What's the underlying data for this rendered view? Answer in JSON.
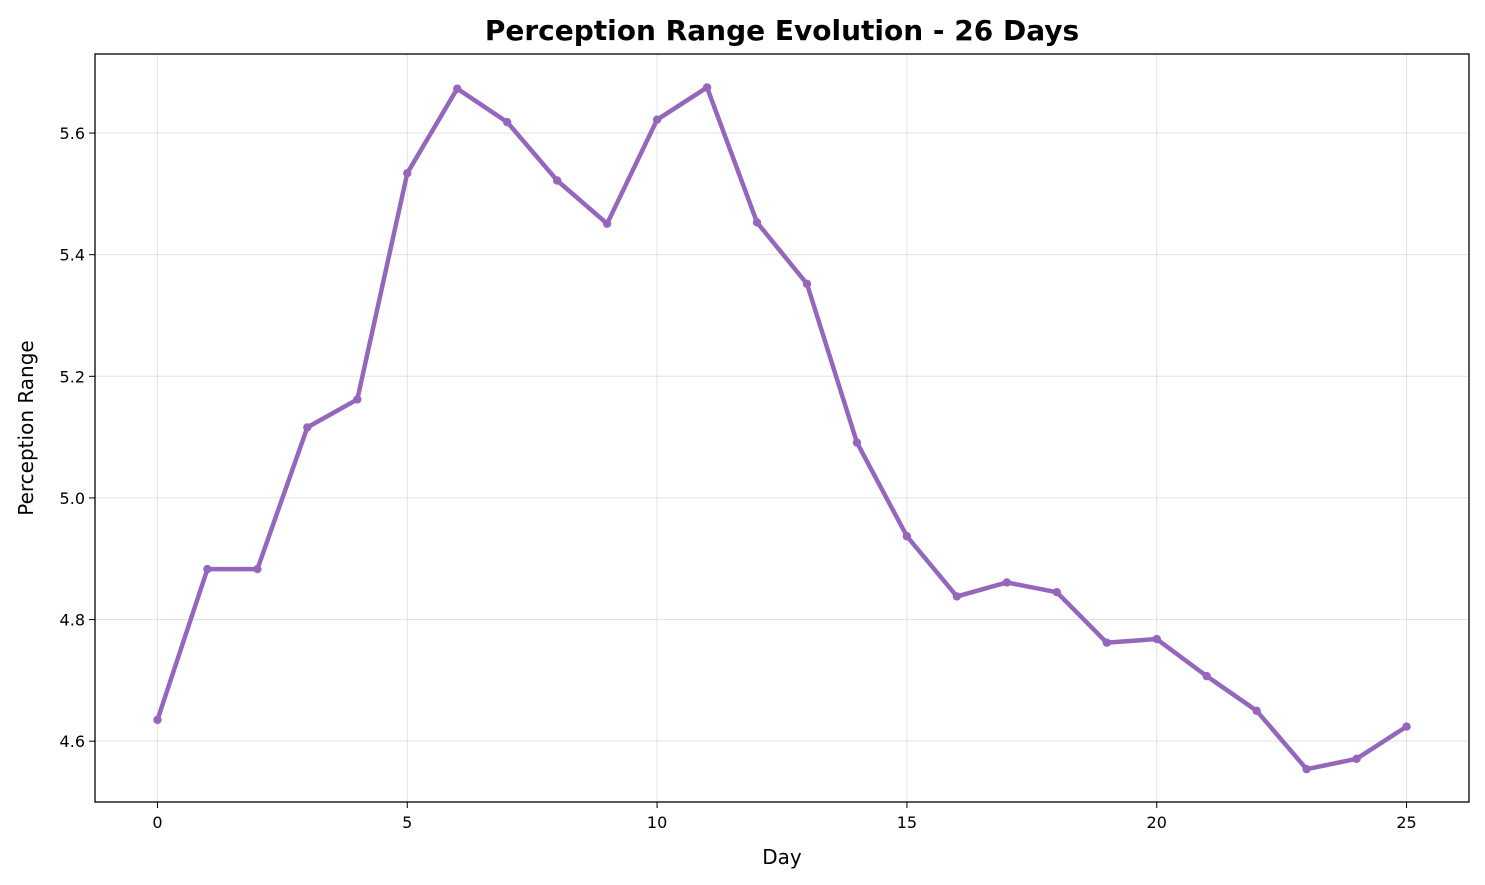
{
  "chart_data": {
    "type": "line",
    "title": "Perception Range Evolution - 26 Days",
    "xlabel": "Day",
    "ylabel": "Perception Range",
    "xlim": [
      -1.25,
      26.25
    ],
    "ylim": [
      4.5,
      5.73
    ],
    "xticks": [
      0,
      5,
      10,
      15,
      20,
      25
    ],
    "yticks": [
      4.6,
      4.8,
      5.0,
      5.2,
      5.4,
      5.6
    ],
    "grid": true,
    "series": [
      {
        "color": "#9467bd",
        "x": [
          0,
          1,
          2,
          3,
          4,
          5,
          6,
          7,
          8,
          9,
          10,
          11,
          12,
          13,
          14,
          15,
          16,
          17,
          18,
          19,
          20,
          21,
          22,
          23,
          24,
          25
        ],
        "values": [
          4.635,
          4.883,
          4.883,
          5.116,
          5.162,
          5.534,
          5.673,
          5.618,
          5.522,
          5.451,
          5.622,
          5.675,
          5.453,
          5.352,
          5.091,
          4.937,
          4.838,
          4.861,
          4.845,
          4.762,
          4.768,
          4.707,
          4.65,
          4.554,
          4.571,
          4.624
        ]
      }
    ]
  }
}
